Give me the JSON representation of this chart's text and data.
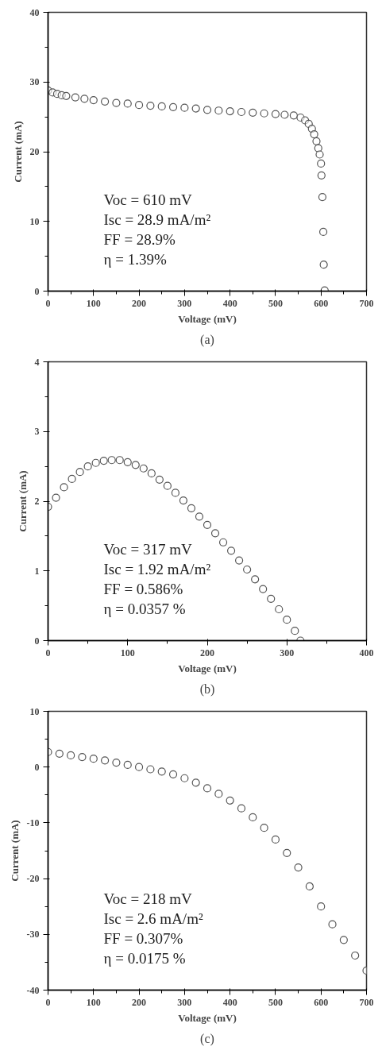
{
  "chart_data": [
    {
      "type": "scatter",
      "title": "(a)",
      "xlabel": "Voltage (mV)",
      "ylabel": "Current (mA)",
      "xlim": [
        0,
        700
      ],
      "ylim": [
        0,
        40
      ],
      "xticks": [
        0,
        100,
        200,
        300,
        400,
        500,
        600,
        700
      ],
      "yticks": [
        0,
        10,
        20,
        30,
        40
      ],
      "marker": "circle",
      "grid": false,
      "annotations": [
        "Voc = 610 mV",
        "Isc = 28.9 mA/m²",
        "FF = 28.9%",
        "η = 1.39%"
      ],
      "x": [
        0,
        10,
        20,
        30,
        40,
        60,
        80,
        100,
        125,
        150,
        175,
        200,
        225,
        250,
        275,
        300,
        325,
        350,
        375,
        400,
        425,
        450,
        475,
        500,
        520,
        540,
        555,
        565,
        573,
        580,
        585,
        590,
        594,
        597,
        600,
        601,
        603,
        605,
        606,
        608
      ],
      "series": [
        {
          "color": "#555555",
          "values": [
            28.8,
            28.5,
            28.3,
            28.1,
            28.0,
            27.8,
            27.6,
            27.4,
            27.2,
            27.0,
            26.9,
            26.7,
            26.6,
            26.5,
            26.4,
            26.3,
            26.2,
            26.0,
            25.9,
            25.8,
            25.7,
            25.6,
            25.5,
            25.4,
            25.3,
            25.2,
            24.9,
            24.5,
            24.0,
            23.3,
            22.5,
            21.5,
            20.5,
            19.6,
            18.3,
            16.6,
            13.5,
            8.5,
            3.8,
            0.1
          ]
        }
      ]
    },
    {
      "type": "scatter",
      "title": "(b)",
      "xlabel": "Voltage (mV)",
      "ylabel": "Current (mA)",
      "xlim": [
        0,
        400
      ],
      "ylim": [
        0,
        4
      ],
      "xticks": [
        0,
        100,
        200,
        300,
        400
      ],
      "yticks": [
        0,
        1,
        2,
        3,
        4
      ],
      "marker": "circle",
      "grid": false,
      "annotations": [
        "Voc = 317 mV",
        "Isc = 1.92 mA/m²",
        "FF = 0.586%",
        "η = 0.0357 %"
      ],
      "x": [
        0,
        10,
        20,
        30,
        40,
        50,
        60,
        70,
        80,
        90,
        100,
        110,
        120,
        130,
        140,
        150,
        160,
        170,
        180,
        190,
        200,
        210,
        220,
        230,
        240,
        250,
        260,
        270,
        280,
        290,
        300,
        310,
        317
      ],
      "series": [
        {
          "color": "#555555",
          "values": [
            1.92,
            2.05,
            2.2,
            2.32,
            2.42,
            2.5,
            2.55,
            2.58,
            2.59,
            2.59,
            2.56,
            2.52,
            2.47,
            2.4,
            2.31,
            2.22,
            2.12,
            2.01,
            1.9,
            1.78,
            1.66,
            1.54,
            1.41,
            1.29,
            1.15,
            1.02,
            0.88,
            0.74,
            0.6,
            0.45,
            0.3,
            0.14,
            0.0
          ]
        }
      ]
    },
    {
      "type": "scatter",
      "title": "(c)",
      "xlabel": "Voltage (mV)",
      "ylabel": "Current (mA)",
      "xlim": [
        0,
        700
      ],
      "ylim": [
        -40,
        10
      ],
      "xticks": [
        0,
        100,
        200,
        300,
        400,
        500,
        600,
        700
      ],
      "yticks": [
        -40,
        -30,
        -20,
        -10,
        0,
        10
      ],
      "marker": "circle",
      "grid": false,
      "annotations": [
        "Voc = 218 mV",
        "Isc = 2.6 mA/m²",
        "FF = 0.307%",
        "η = 0.0175 %"
      ],
      "x": [
        0,
        25,
        50,
        75,
        100,
        125,
        150,
        175,
        200,
        225,
        250,
        275,
        300,
        325,
        350,
        375,
        400,
        425,
        450,
        475,
        500,
        525,
        550,
        575,
        600,
        625,
        650,
        675,
        700
      ],
      "series": [
        {
          "color": "#555555",
          "values": [
            2.7,
            2.4,
            2.1,
            1.8,
            1.5,
            1.2,
            0.8,
            0.4,
            0.0,
            -0.4,
            -0.8,
            -1.3,
            -2.0,
            -2.8,
            -3.8,
            -4.8,
            -6.0,
            -7.4,
            -9.0,
            -10.9,
            -13.0,
            -15.4,
            -18.0,
            -21.4,
            -25.0,
            -28.2,
            -31.0,
            -33.8,
            -36.5
          ]
        }
      ]
    }
  ]
}
